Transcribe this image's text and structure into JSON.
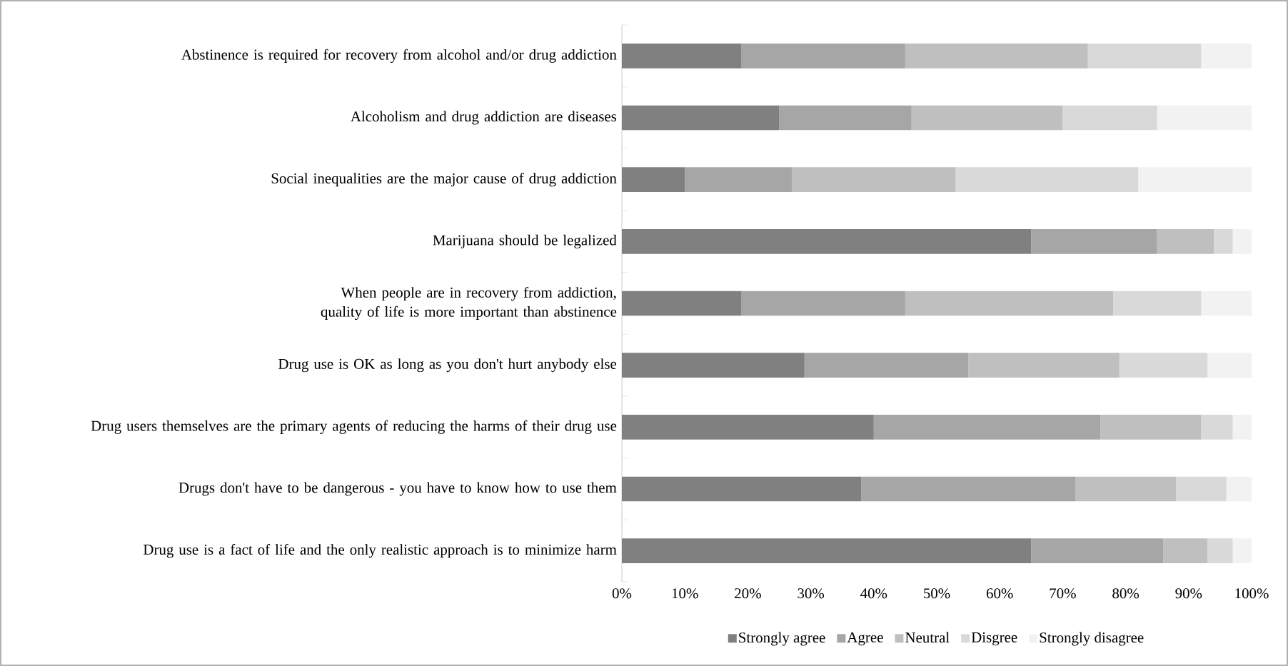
{
  "chart_data": {
    "type": "bar",
    "orientation": "horizontal",
    "stacked": true,
    "legend": "bottom",
    "grid": false,
    "categories": [
      "Abstinence is required for recovery from alcohol and/or drug addiction",
      "Alcoholism and drug addiction are diseases",
      "Social inequalities are the major cause of drug addiction",
      "Marijuana should be legalized",
      "When people are in recovery from addiction, quality of life is more important than abstinence",
      "Drug use is OK as long as you don't hurt anybody else",
      "Drug users themselves are the primary agents of reducing the harms of their drug use",
      "Drugs don't have to be dangerous - you have to know how to use them",
      "Drug use is a fact of life and the only realistic approach is to minimize harm"
    ],
    "series": [
      {
        "name": "Strongly agree",
        "color": "#808080",
        "values": [
          19,
          25,
          10,
          65,
          19,
          29,
          40,
          38,
          65
        ]
      },
      {
        "name": "Agree",
        "color": "#a6a6a6",
        "values": [
          26,
          21,
          17,
          20,
          26,
          26,
          36,
          34,
          21
        ]
      },
      {
        "name": "Neutral",
        "color": "#bfbfbf",
        "values": [
          29,
          24,
          26,
          9,
          33,
          24,
          16,
          16,
          7
        ]
      },
      {
        "name": "Disgree",
        "color": "#d9d9d9",
        "values": [
          18,
          15,
          29,
          3,
          14,
          14,
          5,
          8,
          4
        ]
      },
      {
        "name": "Strongly disagree",
        "color": "#f2f2f2",
        "values": [
          8,
          15,
          18,
          3,
          8,
          7,
          3,
          4,
          3
        ]
      }
    ],
    "xlim": [
      0,
      100
    ],
    "xticks": [
      {
        "value": 0,
        "label": "0%"
      },
      {
        "value": 10,
        "label": "10%"
      },
      {
        "value": 20,
        "label": "20%"
      },
      {
        "value": 30,
        "label": "30%"
      },
      {
        "value": 40,
        "label": "40%"
      },
      {
        "value": 50,
        "label": "50%"
      },
      {
        "value": 60,
        "label": "60%"
      },
      {
        "value": 70,
        "label": "70%"
      },
      {
        "value": 80,
        "label": "80%"
      },
      {
        "value": 90,
        "label": "90%"
      },
      {
        "value": 100,
        "label": "100%"
      }
    ]
  }
}
